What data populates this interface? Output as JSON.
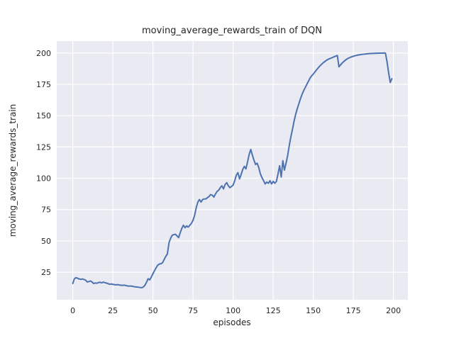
{
  "figure": {
    "background_color": "#ffffff",
    "plot_background_color": "#eaeaf2",
    "grid_color": "#ffffff",
    "line_color": "#4c72b0",
    "text_color": "#262626"
  },
  "chart_data": {
    "type": "line",
    "title": "moving_average_rewards_train of DQN",
    "xlabel": "episodes",
    "ylabel": "moving_average_rewards_train",
    "legend": null,
    "grid": true,
    "xticks": [
      0,
      25,
      50,
      75,
      100,
      125,
      150,
      175,
      200
    ],
    "yticks": [
      25,
      50,
      75,
      100,
      125,
      150,
      175,
      200
    ],
    "xlim": [
      -10,
      209
    ],
    "ylim": [
      3,
      209.5
    ],
    "series": [
      {
        "name": "moving_average_rewards_train",
        "x_start": 0,
        "x_step": 1,
        "values": [
          16.0,
          19.8,
          20.6,
          20.2,
          19.6,
          19.3,
          19.6,
          19.2,
          18.7,
          17.2,
          17.5,
          18.0,
          17.2,
          16.0,
          16.4,
          16.2,
          16.7,
          17.0,
          16.5,
          17.1,
          16.7,
          16.3,
          15.9,
          15.4,
          15.6,
          15.3,
          15.1,
          14.9,
          15.1,
          14.8,
          14.6,
          14.5,
          14.7,
          14.4,
          14.1,
          13.9,
          14.0,
          13.8,
          13.5,
          13.3,
          13.2,
          13.0,
          12.8,
          12.6,
          13.2,
          14.6,
          17.0,
          19.8,
          18.9,
          21.2,
          23.8,
          26.3,
          28.6,
          30.6,
          31.5,
          31.8,
          32.6,
          35.2,
          37.6,
          39.6,
          48.5,
          52.0,
          54.5,
          55.0,
          55.3,
          54.0,
          52.6,
          56.5,
          60.0,
          62.5,
          60.5,
          62.0,
          61.0,
          62.5,
          64.0,
          66.5,
          70.5,
          76.5,
          81.0,
          83.0,
          81.0,
          83.0,
          83.5,
          83.5,
          84.5,
          85.5,
          87.0,
          86.5,
          85.0,
          87.5,
          89.5,
          90.5,
          92.5,
          94.0,
          91.5,
          95.0,
          96.5,
          94.0,
          92.5,
          93.5,
          94.5,
          98.0,
          102.5,
          104.5,
          99.5,
          103.0,
          107.0,
          109.5,
          107.5,
          113.0,
          119.0,
          123.0,
          118.5,
          114.5,
          111.0,
          112.0,
          108.5,
          103.5,
          100.5,
          98.0,
          95.5,
          97.0,
          96.0,
          98.0,
          95.5,
          97.5,
          96.0,
          97.5,
          103.5,
          110.0,
          101.0,
          114.0,
          106.5,
          112.0,
          118.0,
          126.0,
          133.0,
          139.0,
          145.5,
          151.0,
          155.5,
          159.5,
          163.5,
          167.0,
          170.0,
          172.5,
          175.0,
          177.5,
          180.0,
          181.8,
          183.2,
          184.8,
          186.5,
          188.0,
          189.5,
          190.8,
          192.0,
          193.0,
          194.0,
          194.8,
          195.4,
          195.9,
          196.4,
          197.0,
          197.5,
          198.0,
          189.0,
          190.5,
          192.0,
          193.2,
          194.3,
          195.2,
          195.9,
          196.5,
          197.0,
          197.4,
          197.8,
          198.1,
          198.4,
          198.6,
          198.8,
          199.0,
          199.1,
          199.3,
          199.4,
          199.5,
          199.6,
          199.7,
          199.7,
          199.8,
          199.8,
          199.9,
          199.9,
          199.9,
          200.0,
          199.9,
          193.0,
          184.0,
          176.5,
          179.5
        ]
      }
    ]
  }
}
